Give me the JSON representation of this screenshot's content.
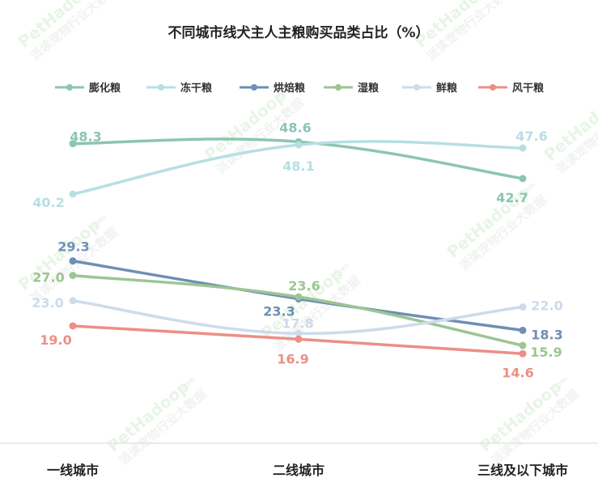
{
  "chart_data": {
    "type": "line",
    "title": "不同城市线犬主人主粮购买品类占比（%）",
    "categories": [
      "一线城市",
      "二线城市",
      "三线及以下城市"
    ],
    "series": [
      {
        "name": "膨化粮",
        "values": [
          48.3,
          48.6,
          42.7
        ],
        "color": "#8cc5b5"
      },
      {
        "name": "冻干粮",
        "values": [
          40.2,
          48.1,
          47.6
        ],
        "color": "#b7dfe3"
      },
      {
        "name": "烘焙粮",
        "values": [
          29.3,
          23.3,
          18.3
        ],
        "color": "#6f8fb3"
      },
      {
        "name": "湿粮",
        "values": [
          27.0,
          23.6,
          15.9
        ],
        "color": "#9cc593"
      },
      {
        "name": "鲜粮",
        "values": [
          23.0,
          17.8,
          22.0
        ],
        "color": "#cddbec"
      },
      {
        "name": "风干粮",
        "values": [
          19.0,
          16.9,
          14.6
        ],
        "color": "#ec8f86"
      }
    ],
    "legend_position": "top",
    "grid": false,
    "ylim": [
      5,
      50
    ]
  },
  "watermark": {
    "brand": "PetHadoop",
    "domain": ".com",
    "slogan": "派读宠物行业大数据"
  }
}
